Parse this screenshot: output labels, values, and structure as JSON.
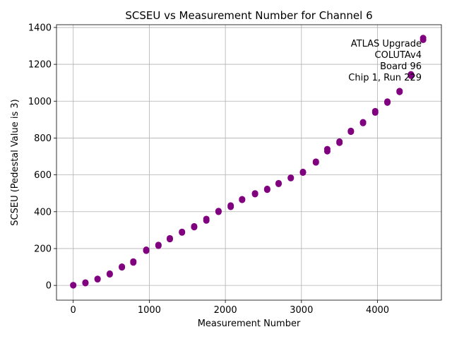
{
  "chart_data": {
    "type": "scatter",
    "title": "SCSEU vs Measurement Number for Channel 6",
    "xlabel": "Measurement Number",
    "ylabel": "SCSEU (Pedestal Value is 3)",
    "xlim": [
      -220,
      4840
    ],
    "ylim": [
      -80,
      1415
    ],
    "xticks": [
      0,
      1000,
      2000,
      3000,
      4000
    ],
    "yticks": [
      0,
      200,
      400,
      600,
      800,
      1000,
      1200,
      1400
    ],
    "grid": true,
    "marker_color": "#800080",
    "annotation": [
      "ATLAS Upgrade",
      "COLUTAv4",
      "Board 96",
      "Chip 1, Run 229"
    ],
    "series": [
      {
        "points": [
          [
            0,
            0
          ],
          [
            0,
            2
          ],
          [
            160,
            12
          ],
          [
            160,
            16
          ],
          [
            320,
            33
          ],
          [
            320,
            36
          ],
          [
            480,
            60
          ],
          [
            480,
            64
          ],
          [
            640,
            98
          ],
          [
            640,
            102
          ],
          [
            790,
            124
          ],
          [
            790,
            130
          ],
          [
            960,
            188
          ],
          [
            960,
            194
          ],
          [
            1120,
            215
          ],
          [
            1120,
            220
          ],
          [
            1270,
            251
          ],
          [
            1270,
            256
          ],
          [
            1430,
            287
          ],
          [
            1430,
            291
          ],
          [
            1590,
            316
          ],
          [
            1590,
            321
          ],
          [
            1750,
            352
          ],
          [
            1750,
            361
          ],
          [
            1910,
            399
          ],
          [
            1910,
            404
          ],
          [
            2070,
            426
          ],
          [
            2070,
            434
          ],
          [
            2220,
            464
          ],
          [
            2220,
            468
          ],
          [
            2390,
            495
          ],
          [
            2390,
            500
          ],
          [
            2550,
            519
          ],
          [
            2550,
            524
          ],
          [
            2700,
            551
          ],
          [
            2700,
            555
          ],
          [
            2860,
            582
          ],
          [
            2860,
            585
          ],
          [
            3020,
            612
          ],
          [
            3020,
            616
          ],
          [
            3190,
            667
          ],
          [
            3190,
            672
          ],
          [
            3340,
            728
          ],
          [
            3340,
            740
          ],
          [
            3500,
            774
          ],
          [
            3500,
            781
          ],
          [
            3650,
            834
          ],
          [
            3650,
            839
          ],
          [
            3810,
            881
          ],
          [
            3810,
            886
          ],
          [
            3970,
            938
          ],
          [
            3970,
            946
          ],
          [
            4130,
            992
          ],
          [
            4130,
            998
          ],
          [
            4290,
            1050
          ],
          [
            4290,
            1055
          ],
          [
            4440,
            1138
          ],
          [
            4440,
            1146
          ],
          [
            4600,
            1333
          ],
          [
            4600,
            1343
          ]
        ]
      }
    ]
  }
}
